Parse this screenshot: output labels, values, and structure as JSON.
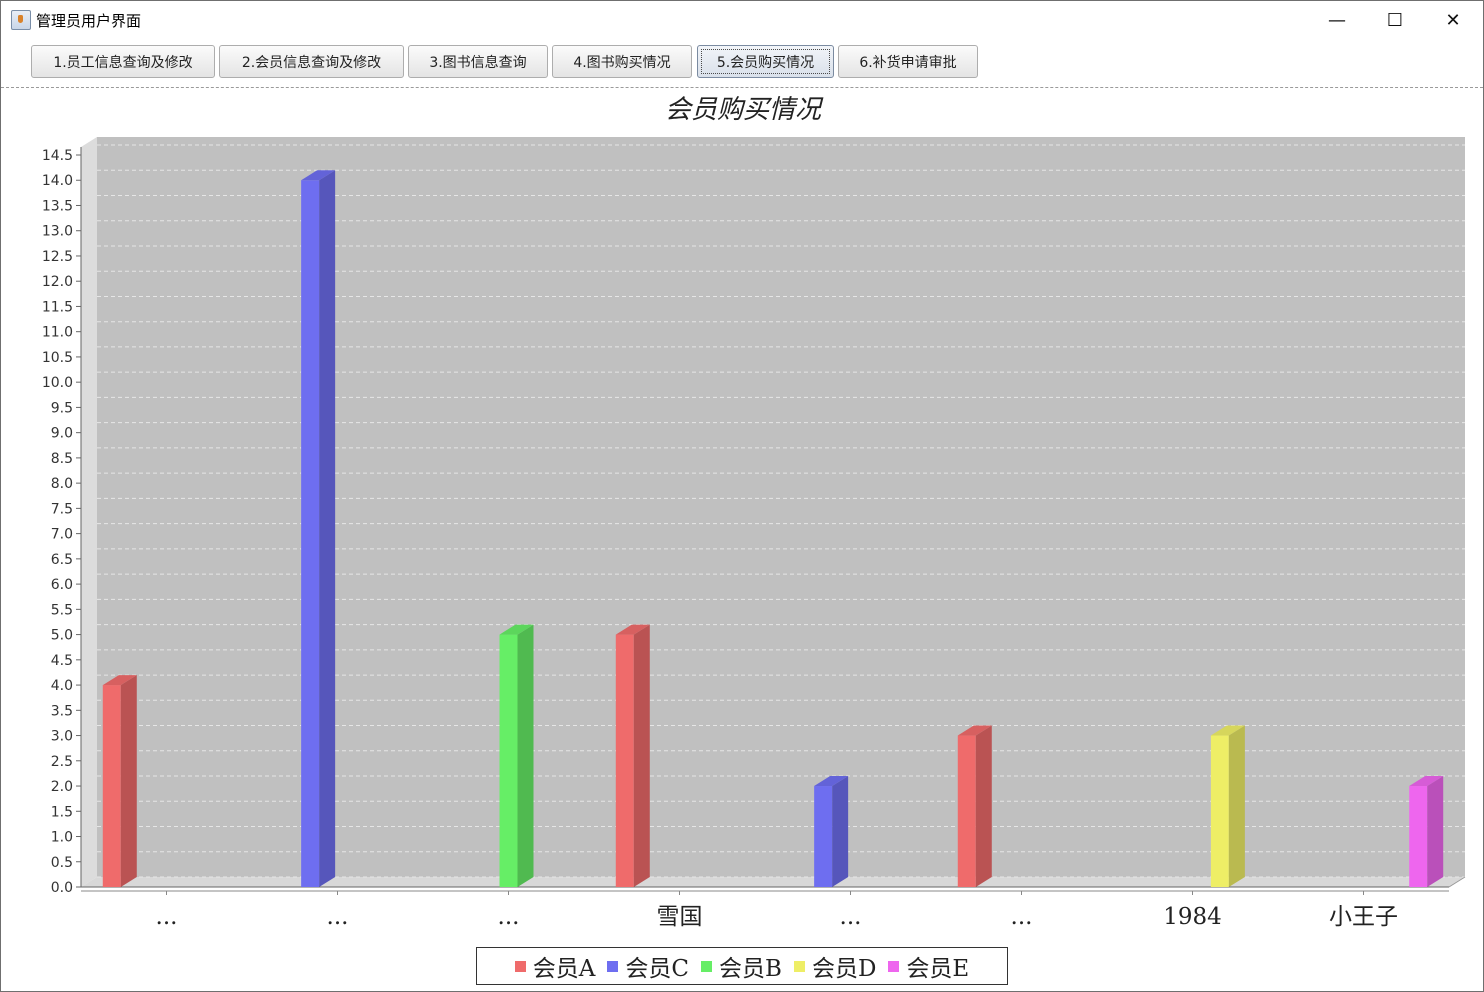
{
  "window": {
    "title": "管理员用户界面",
    "controls": {
      "minimize": "—",
      "maximize": "☐",
      "close": "✕"
    }
  },
  "toolbar": {
    "tabs": [
      {
        "label": "1.员工信息查询及修改",
        "active": false
      },
      {
        "label": "2.会员信息查询及修改",
        "active": false
      },
      {
        "label": "3.图书信息查询",
        "active": false
      },
      {
        "label": "4.图书购买情况",
        "active": false
      },
      {
        "label": "5.会员购买情况",
        "active": true
      },
      {
        "label": "6.补货申请审批",
        "active": false
      }
    ]
  },
  "chart_data": {
    "type": "bar",
    "style": "3d",
    "title": "会员购买情况",
    "xlabel": "",
    "ylabel": "",
    "ylim": [
      0,
      14.5
    ],
    "ytick_step": 0.5,
    "grid": true,
    "legend_position": "bottom",
    "categories": [
      "...",
      "...",
      "...",
      "雪国",
      "...",
      "...",
      "1984",
      "小王子"
    ],
    "series": [
      {
        "name": "会员A",
        "color": "#ef6b6b",
        "values": [
          4,
          null,
          null,
          5,
          null,
          3,
          null,
          null
        ]
      },
      {
        "name": "会员C",
        "color": "#6e6ef0",
        "values": [
          null,
          14,
          null,
          null,
          2,
          null,
          null,
          null
        ]
      },
      {
        "name": "会员B",
        "color": "#66ee66",
        "values": [
          null,
          null,
          5,
          null,
          null,
          null,
          null,
          null
        ]
      },
      {
        "name": "会员D",
        "color": "#eeee66",
        "values": [
          null,
          null,
          null,
          null,
          null,
          null,
          3,
          null
        ]
      },
      {
        "name": "会员E",
        "color": "#ee66ee",
        "values": [
          null,
          null,
          null,
          null,
          null,
          null,
          null,
          2
        ]
      }
    ]
  }
}
